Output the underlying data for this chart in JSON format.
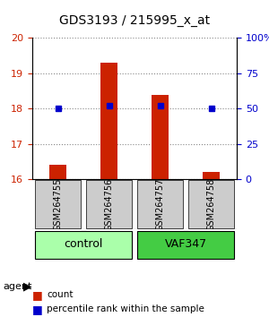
{
  "title": "GDS3193 / 215995_x_at",
  "samples": [
    "GSM264755",
    "GSM264756",
    "GSM264757",
    "GSM264758"
  ],
  "count_values": [
    16.4,
    19.3,
    18.4,
    16.2
  ],
  "percentile_values": [
    50,
    52,
    52,
    50
  ],
  "ylim_left": [
    16,
    20
  ],
  "ylim_right": [
    0,
    100
  ],
  "yticks_left": [
    16,
    17,
    18,
    19,
    20
  ],
  "yticks_right": [
    0,
    25,
    50,
    75,
    100
  ],
  "ytick_labels_right": [
    "0",
    "25",
    "50",
    "75",
    "100%"
  ],
  "bar_color": "#cc2200",
  "dot_color": "#0000cc",
  "groups": [
    {
      "label": "control",
      "samples": [
        0,
        1
      ],
      "color": "#aaffaa"
    },
    {
      "label": "VAF347",
      "samples": [
        2,
        3
      ],
      "color": "#44cc44"
    }
  ],
  "group_label": "agent",
  "legend_count_label": "count",
  "legend_percentile_label": "percentile rank within the sample",
  "grid_color": "#888888",
  "sample_box_color": "#cccccc",
  "background_color": "#ffffff"
}
